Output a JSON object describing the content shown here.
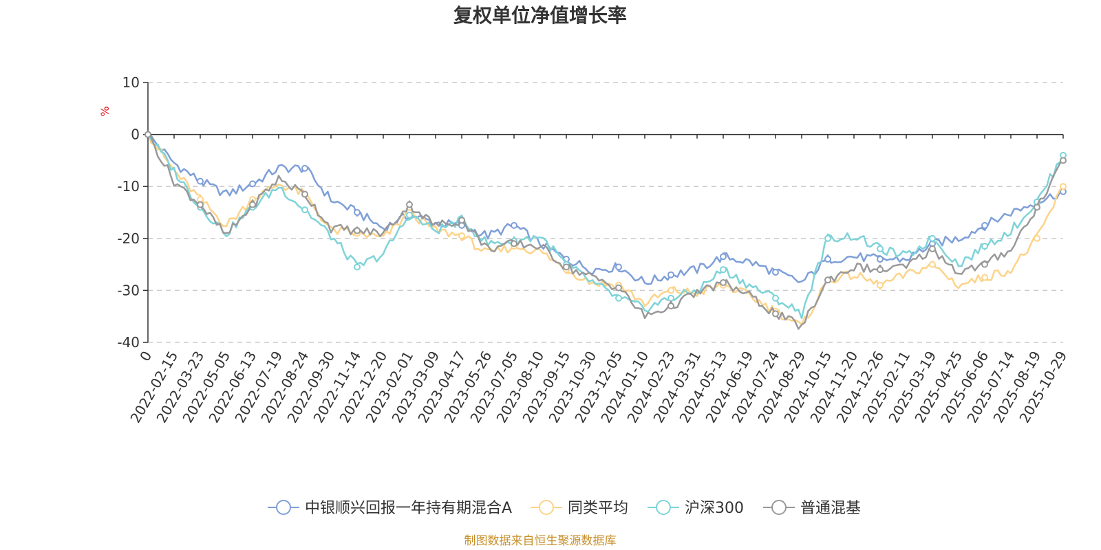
{
  "chart_data": {
    "type": "line",
    "title": "复权单位净值增长率",
    "ylabel": "%",
    "xlabel": "",
    "ylim": [
      -40,
      10
    ],
    "yticks": [
      10,
      0,
      -10,
      -20,
      -30,
      -40
    ],
    "grid": true,
    "legend_position": "bottom-center",
    "x": [
      "0",
      "2022-02-15",
      "2022-03-23",
      "2022-05-05",
      "2022-06-13",
      "2022-07-19",
      "2022-08-24",
      "2022-09-30",
      "2022-11-14",
      "2022-12-20",
      "2023-02-01",
      "2023-03-09",
      "2023-04-17",
      "2023-05-26",
      "2023-07-05",
      "2023-08-10",
      "2023-09-15",
      "2023-10-30",
      "2023-12-05",
      "2024-01-10",
      "2024-02-23",
      "2024-03-31",
      "2024-05-13",
      "2024-06-19",
      "2024-07-24",
      "2024-08-29",
      "2024-10-15",
      "2024-11-20",
      "2024-12-26",
      "2025-02-11",
      "2025-03-19",
      "2025-04-25",
      "2025-06-06",
      "2025-07-14",
      "2025-08-19",
      "2025-10-29"
    ],
    "series": [
      {
        "name": "中银顺兴回报一年持有期混合A",
        "color": "#7e9fd8",
        "values": [
          0,
          -5.5,
          -9,
          -11.5,
          -9.5,
          -6.5,
          -6.5,
          -12.5,
          -15,
          -18,
          -15.5,
          -17,
          -17.5,
          -19.5,
          -17.5,
          -21,
          -24,
          -26,
          -25.5,
          -28.5,
          -27,
          -26,
          -23.5,
          -24.5,
          -26.5,
          -28.5,
          -24,
          -23.5,
          -24,
          -24,
          -21,
          -20,
          -17.5,
          -15,
          -13,
          -11
        ]
      },
      {
        "name": "同类平均",
        "color": "#fdd389",
        "values": [
          0,
          -7,
          -12.5,
          -17.5,
          -12.5,
          -9.5,
          -11.5,
          -18.5,
          -19,
          -20,
          -15,
          -18.5,
          -19.5,
          -23,
          -21.5,
          -22.5,
          -26,
          -28.5,
          -29,
          -32.5,
          -30,
          -30.5,
          -29,
          -31,
          -34,
          -37,
          -28,
          -27,
          -29,
          -27,
          -25,
          -29,
          -27.5,
          -26,
          -20,
          -10
        ]
      },
      {
        "name": "沪深300",
        "color": "#7ed3d8",
        "values": [
          0,
          -7,
          -14,
          -19,
          -14,
          -10,
          -14.5,
          -19.5,
          -25.5,
          -23,
          -15.5,
          -18.5,
          -16.5,
          -21,
          -20.5,
          -19.5,
          -25,
          -28.5,
          -31.5,
          -33.5,
          -31.5,
          -30,
          -26,
          -29,
          -31.5,
          -34.5,
          -20,
          -19.5,
          -22,
          -23.5,
          -20,
          -25,
          -21.5,
          -18.5,
          -13,
          -4
        ]
      },
      {
        "name": "普通混基",
        "color": "#999999",
        "values": [
          0,
          -9,
          -13.5,
          -19.5,
          -13.5,
          -8.5,
          -11.5,
          -18,
          -18.5,
          -19,
          -13.5,
          -17.5,
          -16.5,
          -22,
          -21,
          -21.5,
          -25.5,
          -27.5,
          -29.5,
          -35,
          -33,
          -30.5,
          -28.5,
          -31,
          -34.5,
          -37,
          -28,
          -25.5,
          -26,
          -25.5,
          -22,
          -26.5,
          -25,
          -22,
          -14,
          -5
        ]
      }
    ]
  },
  "footer": {
    "source": "制图数据来自恒生聚源数据库"
  }
}
